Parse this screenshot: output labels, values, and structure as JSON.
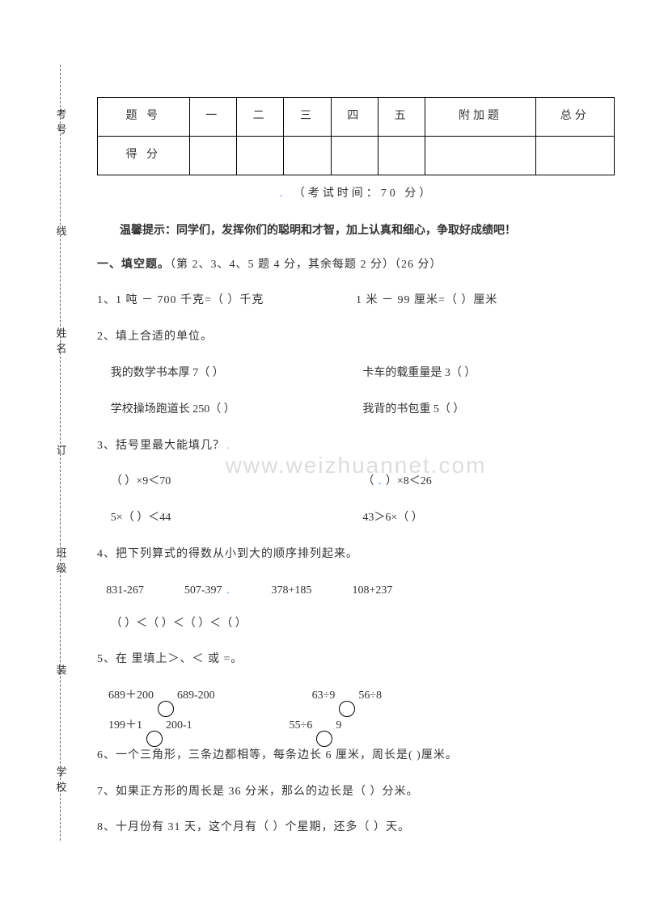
{
  "binding": {
    "school": "学校",
    "class": "班级",
    "name": "姓名",
    "number": "考号",
    "zhuang": "装",
    "ding": "订",
    "xian": "线"
  },
  "scoreTable": {
    "headers": [
      "题 号",
      "一",
      "二",
      "三",
      "四",
      "五",
      "附加题",
      "总分"
    ],
    "row2": "得 分"
  },
  "examTime": "（考试时间：70 分）",
  "tip": "温馨提示：同学们，发挥你们的聪明和才智，加上认真和细心，争取好成绩吧！",
  "section1Title": "一、填空题。",
  "section1Note": "（第 2、3、4、5 题 4 分，其余每题 2 分）（26 分）",
  "q1a": "1、1 吨 － 700 千克=（        ）千克",
  "q1b": "1 米 － 99 厘米=（     ）厘米",
  "q2": "2、填上合适的单位。",
  "q2a": "我的数学书本厚 7（         ）",
  "q2b": "卡车的载重量是 3（         ）",
  "q2c": "学校操场跑道长 250（        ）",
  "q2d": "我背的书包重 5（         ）",
  "q3": "3、括号里最大能填几？",
  "q3a": "（        ）×9＜70",
  "q3b": "（        ）×8＜26",
  "q3c": "5×（        ）＜44",
  "q3d": "43＞6×（        ）",
  "q4": "4、把下列算式的得数从小到大的顺序排列起来。",
  "q4e1": "831-267",
  "q4e2": "507-397",
  "q4e3": "378+185",
  "q4e4": "108+237",
  "q4cmp": "（            ）＜（            ）＜（            ）＜（            ）",
  "q5": "5、在     里填上＞、＜ 或 =。",
  "q5a1": "689＋200",
  "q5a2": "689-200",
  "q5b1": "63÷9",
  "q5b2": "56÷8",
  "q5c1": "199＋1",
  "q5c2": "200-1",
  "q5d1": "55÷6",
  "q5d2": "9",
  "q6": "6、一个三角形，三条边都相等，每条边长 6 厘米，周长是(         )厘米。",
  "q7": "7、如果正方形的周长是 36 分米，那么的边长是（       ）分米。",
  "q8": "8、十月份有 31 天，这个月有（     ）个星期，还多（         ）天。",
  "watermark": "www.weizhuannet.com",
  "colors": {
    "text": "#333333",
    "border": "#000000",
    "watermark": "#dddddd",
    "blueDot": "#3a7fd5",
    "greenDot": "#6abf6a"
  }
}
